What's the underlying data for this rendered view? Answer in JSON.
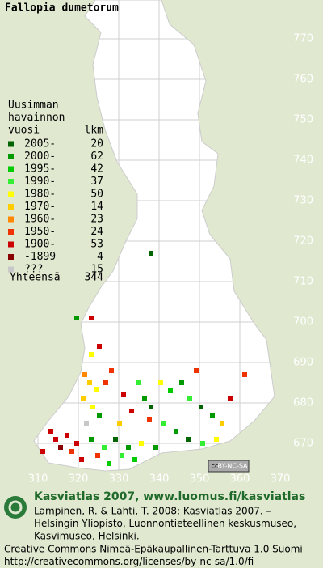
{
  "title": "Fallopia dumetorum",
  "legend": {
    "heading": [
      "Uusimman",
      "havainnon",
      "vuosi"
    ],
    "count_heading": "lkm",
    "entries": [
      {
        "label": "2005-",
        "count": "20",
        "color": "#006400"
      },
      {
        "label": "2000-",
        "count": "62",
        "color": "#009a00"
      },
      {
        "label": "1995-",
        "count": "42",
        "color": "#00cc00"
      },
      {
        "label": "1990-",
        "count": "37",
        "color": "#33ee33"
      },
      {
        "label": "1980-",
        "count": "50",
        "color": "#ffff00"
      },
      {
        "label": "1970-",
        "count": "14",
        "color": "#ffcc00"
      },
      {
        "label": "1960-",
        "count": "23",
        "color": "#ff8800"
      },
      {
        "label": "1950-",
        "count": "24",
        "color": "#ee3300"
      },
      {
        "label": "1900-",
        "count": "53",
        "color": "#cc0000"
      },
      {
        "label": "-1899",
        "count": "4",
        "color": "#880000"
      },
      {
        "label": "???",
        "count": "15",
        "color": "#c8c8c8"
      }
    ],
    "total_label": "Yhteensä",
    "total": "344"
  },
  "y_grid_labels": [
    "770",
    "760",
    "750",
    "740",
    "730",
    "720",
    "710",
    "700",
    "690",
    "680",
    "670"
  ],
  "x_grid_labels": [
    "310",
    "320",
    "330",
    "340",
    "350",
    "360",
    "370"
  ],
  "badge": {
    "cc": "cc",
    "license": "BY-NC-SA"
  },
  "footer": {
    "site": "Kasviatlas 2007, www.luomus.fi/kasviatlas",
    "citation": [
      "Lampinen, R. & Lahti, T. 2008: Kasviatlas 2007. –",
      "Helsingin Yliopisto, Luonnontieteellinen keskusmuseo,",
      "Kasvimuseo, Helsinki."
    ],
    "license": [
      "Creative Commons Nimeä-Epäkaupallinen-Tarttuva 1.0 Suomi",
      "http://creativecommons.org/licenses/by-nc-sa/1.0/fi"
    ]
  }
}
